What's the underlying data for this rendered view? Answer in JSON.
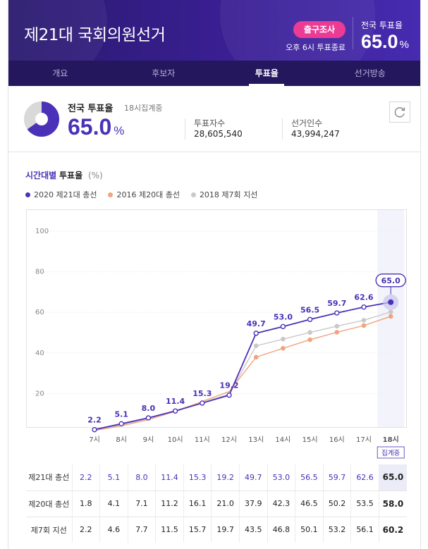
{
  "header": {
    "title": "제21대 국회의원선거",
    "exit_poll": "출구조사",
    "close_note": "오후 6시 투표종료",
    "national_label": "전국 투표율",
    "national_value": "65.0",
    "national_unit": "%"
  },
  "tabs": [
    {
      "label": "개요"
    },
    {
      "label": "후보자"
    },
    {
      "label": "투표율"
    },
    {
      "label": "선거방송"
    }
  ],
  "summary": {
    "label": "전국 투표율",
    "sub": "18시집계중",
    "value": "65.0",
    "unit": "%",
    "turnout_fraction": 0.65,
    "voters_label": "투표자수",
    "voters_value": "28,605,540",
    "electors_label": "선거인수",
    "electors_value": "43,994,247"
  },
  "colors": {
    "accent": "#4a31b8",
    "series_2016": "#f0a47f",
    "series_2018": "#c9c9c9",
    "exit_poll": "#ec3b94"
  },
  "chart_heading": {
    "prefix": "시간대별",
    "main": "투표율",
    "unit": "(%)"
  },
  "chart_data": {
    "type": "line",
    "x": [
      "7시",
      "8시",
      "9시",
      "10시",
      "11시",
      "12시",
      "13시",
      "14시",
      "15시",
      "16시",
      "17시",
      "18시"
    ],
    "x_note": "집계중",
    "y_ticks": [
      "100",
      "80",
      "60",
      "40",
      "20"
    ],
    "ylim": [
      0,
      100
    ],
    "series": [
      {
        "name": "2020 제21대 총선",
        "values": [
          2.2,
          5.1,
          8.0,
          11.4,
          15.3,
          19.2,
          49.7,
          53.0,
          56.5,
          59.7,
          62.6,
          65.0
        ],
        "color": "#4a31b8"
      },
      {
        "name": "2016 제20대 총선",
        "values": [
          1.8,
          4.1,
          7.1,
          11.2,
          16.1,
          21.0,
          37.9,
          42.3,
          46.5,
          50.2,
          53.5,
          58.0
        ],
        "color": "#f0a47f"
      },
      {
        "name": "2018 제7회 지선",
        "values": [
          2.2,
          4.6,
          7.7,
          11.5,
          15.7,
          19.7,
          43.5,
          46.8,
          50.1,
          53.2,
          56.1,
          60.2
        ],
        "color": "#c9c9c9"
      }
    ],
    "grid": true,
    "legend": "top-left"
  },
  "table": {
    "rows": [
      {
        "label": "제21대 총선",
        "values": [
          "2.2",
          "5.1",
          "8.0",
          "11.4",
          "15.3",
          "19.2",
          "49.7",
          "53.0",
          "56.5",
          "59.7",
          "62.6",
          "65.0"
        ]
      },
      {
        "label": "제20대 총선",
        "values": [
          "1.8",
          "4.1",
          "7.1",
          "11.2",
          "16.1",
          "21.0",
          "37.9",
          "42.3",
          "46.5",
          "50.2",
          "53.5",
          "58.0"
        ]
      },
      {
        "label": "제7회 지선",
        "values": [
          "2.2",
          "4.6",
          "7.7",
          "11.5",
          "15.7",
          "19.7",
          "43.5",
          "46.8",
          "50.1",
          "53.2",
          "56.1",
          "60.2"
        ]
      }
    ]
  }
}
